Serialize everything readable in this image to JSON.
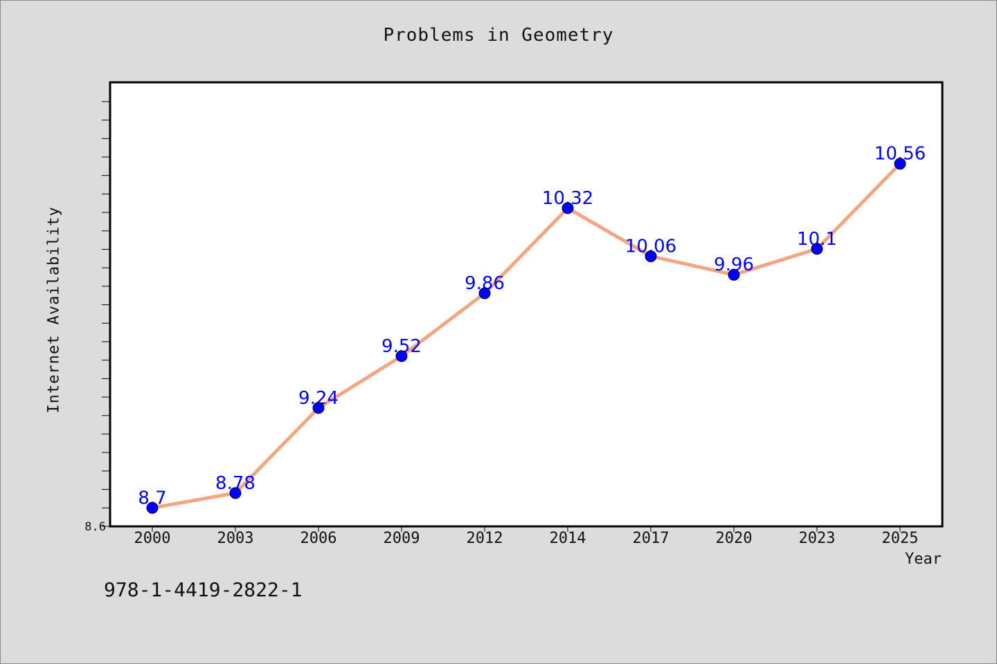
{
  "chart_data": {
    "type": "line",
    "title": "Problems in Geometry",
    "xlabel": "Year",
    "ylabel": "Internet Availability",
    "categories": [
      "2000",
      "2003",
      "2006",
      "2009",
      "2012",
      "2014",
      "2017",
      "2020",
      "2023",
      "2025"
    ],
    "series": [
      {
        "values": [
          8.7,
          8.78,
          9.24,
          9.52,
          9.86,
          10.32,
          10.06,
          9.96,
          10.1,
          10.56
        ],
        "line_color": "#f4a582",
        "marker_color": "#0000ff",
        "label_color": "#0000ff"
      }
    ],
    "data_labels": [
      "8.7",
      "8.78",
      "9.24",
      "9.52",
      "9.86",
      "10.32",
      "10.06",
      "9.96",
      "10.1",
      "10.56"
    ],
    "ylim": [
      8.6,
      11.0
    ],
    "y_tick_labels": [
      "8.6"
    ],
    "grid": false
  },
  "footer_text": "978-1-4419-2822-1",
  "colors": {
    "background": "#dcdcdc",
    "plot_background": "#ffffff"
  }
}
